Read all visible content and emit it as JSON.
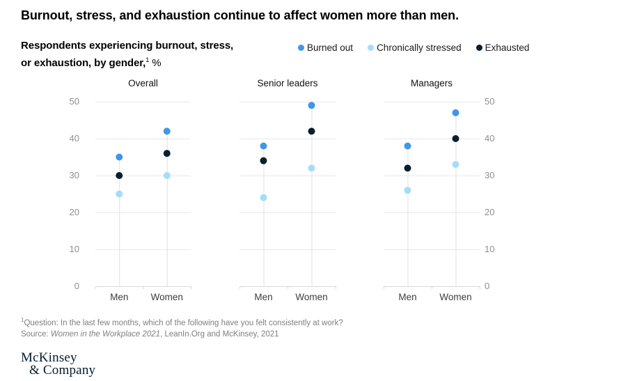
{
  "title": "Burnout, stress, and exhaustion continue to affect women more than men.",
  "subtitle": {
    "line1": "Respondents experiencing burnout, stress,",
    "line2": "or exhaustion, by gender,",
    "footnote_marker": "1",
    "unit": "%"
  },
  "legend": {
    "position": "top",
    "items": [
      {
        "label": "Burned out",
        "color": "#3E97E9"
      },
      {
        "label": "Chronically stressed",
        "color": "#A3DEF8"
      },
      {
        "label": "Exhausted",
        "color": "#0A1F2E"
      }
    ]
  },
  "chart_data": {
    "type": "scatter",
    "unit": "%",
    "ylim": [
      0,
      50
    ],
    "yticks": [
      0,
      10,
      20,
      30,
      40,
      50
    ],
    "grid": "horizontal",
    "categories": [
      "Men",
      "Women"
    ],
    "panels": [
      {
        "title": "Overall",
        "series": [
          {
            "name": "Burned out",
            "values": [
              35,
              42
            ]
          },
          {
            "name": "Chronically stressed",
            "values": [
              25,
              30
            ]
          },
          {
            "name": "Exhausted",
            "values": [
              30,
              36
            ]
          }
        ]
      },
      {
        "title": "Senior leaders",
        "series": [
          {
            "name": "Burned out",
            "values": [
              38,
              49
            ]
          },
          {
            "name": "Chronically stressed",
            "values": [
              24,
              32
            ]
          },
          {
            "name": "Exhausted",
            "values": [
              34,
              42
            ]
          }
        ]
      },
      {
        "title": "Managers",
        "series": [
          {
            "name": "Burned out",
            "values": [
              38,
              47
            ]
          },
          {
            "name": "Chronically stressed",
            "values": [
              26,
              33
            ]
          },
          {
            "name": "Exhausted",
            "values": [
              32,
              40
            ]
          }
        ]
      }
    ]
  },
  "footnotes": {
    "marker": "1",
    "question": "Question: In the last few months, which of the following have you felt consistently at work?",
    "source_prefix": "Source: ",
    "source_title": "Women in the Workplace 2021",
    "source_suffix": ", LeanIn.Org and McKinsey, 2021"
  },
  "logo": {
    "line1": "McKinsey",
    "line2": "& Company"
  },
  "colors": {
    "burned_out": "#3E97E9",
    "chronically_stressed": "#A3DEF8",
    "exhausted": "#0A1F2E",
    "gridline": "#E9E9E9",
    "baseline": "#D8D8D8",
    "stem": "#E0E0E0",
    "axis_text": "#8E8E8E",
    "logo_navy": "#051C2C"
  }
}
